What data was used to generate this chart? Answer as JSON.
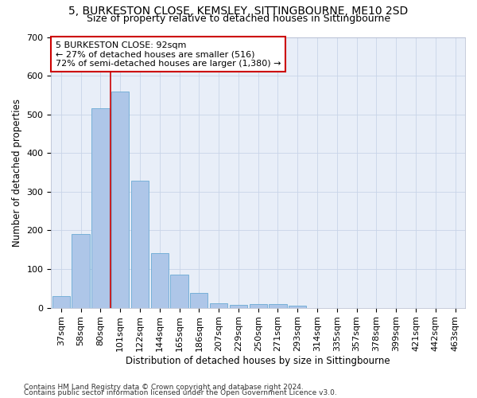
{
  "title_line1": "5, BURKESTON CLOSE, KEMSLEY, SITTINGBOURNE, ME10 2SD",
  "title_line2": "Size of property relative to detached houses in Sittingbourne",
  "xlabel": "Distribution of detached houses by size in Sittingbourne",
  "ylabel": "Number of detached properties",
  "footer_line1": "Contains HM Land Registry data © Crown copyright and database right 2024.",
  "footer_line2": "Contains public sector information licensed under the Open Government Licence v3.0.",
  "categories": [
    "37sqm",
    "58sqm",
    "80sqm",
    "101sqm",
    "122sqm",
    "144sqm",
    "165sqm",
    "186sqm",
    "207sqm",
    "229sqm",
    "250sqm",
    "271sqm",
    "293sqm",
    "314sqm",
    "335sqm",
    "357sqm",
    "378sqm",
    "399sqm",
    "421sqm",
    "442sqm",
    "463sqm"
  ],
  "values": [
    30,
    190,
    515,
    560,
    328,
    142,
    86,
    38,
    12,
    8,
    10,
    10,
    5,
    0,
    0,
    0,
    0,
    0,
    0,
    0,
    0
  ],
  "bar_color": "#aec6e8",
  "bar_edge_color": "#6aaad4",
  "grid_color": "#c8d4e8",
  "background_color": "#e8eef8",
  "annotation_box_color": "#ffffff",
  "annotation_box_edge_color": "#cc0000",
  "redline_x": 2.5,
  "ylim": [
    0,
    700
  ],
  "yticks": [
    0,
    100,
    200,
    300,
    400,
    500,
    600,
    700
  ],
  "title_fontsize": 10,
  "subtitle_fontsize": 9,
  "axis_label_fontsize": 8.5,
  "tick_fontsize": 8,
  "annotation_fontsize": 8,
  "footer_fontsize": 6.5
}
